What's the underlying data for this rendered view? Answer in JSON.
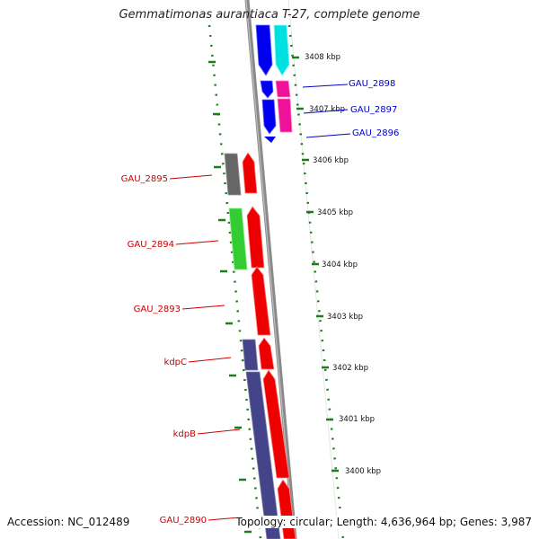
{
  "title": "Gemmatimonas aurantiaca T-27, complete genome",
  "footer": {
    "accession": "Accession: NC_012489",
    "summary": "Topology: circular; Length: 4,636,964 bp; Genes: 3,987"
  },
  "colors": {
    "backbone": "#888888",
    "tick_marks": "#1a7f1a",
    "label_right": "#0000cc",
    "label_left": "#cc0000",
    "blue": "#0000ee",
    "cyan": "#00e0e0",
    "magenta": "#ee1199",
    "red": "#ee0000",
    "gray": "#666666",
    "green": "#33cc33",
    "slate": "#44448a"
  },
  "ruler": {
    "unit": "kbp",
    "labels": [
      "3408 kbp",
      "3407 kbp",
      "3406 kbp",
      "3405 kbp",
      "3404 kbp",
      "3403 kbp",
      "3402 kbp",
      "3401 kbp",
      "3400 kbp"
    ]
  },
  "genes": [
    {
      "name": "GAU_2898",
      "side": "right",
      "color": "blue"
    },
    {
      "name": "GAU_2897",
      "side": "right",
      "color": "blue"
    },
    {
      "name": "GAU_2896",
      "side": "right",
      "color": "blue"
    },
    {
      "name": "GAU_2895",
      "side": "left",
      "color": "red"
    },
    {
      "name": "GAU_2894",
      "side": "left",
      "color": "red"
    },
    {
      "name": "GAU_2893",
      "side": "left",
      "color": "red"
    },
    {
      "name": "kdpC",
      "side": "left",
      "color": "red"
    },
    {
      "name": "kdpB",
      "side": "left",
      "color": "red"
    },
    {
      "name": "GAU_2890",
      "side": "left",
      "color": "red"
    }
  ]
}
